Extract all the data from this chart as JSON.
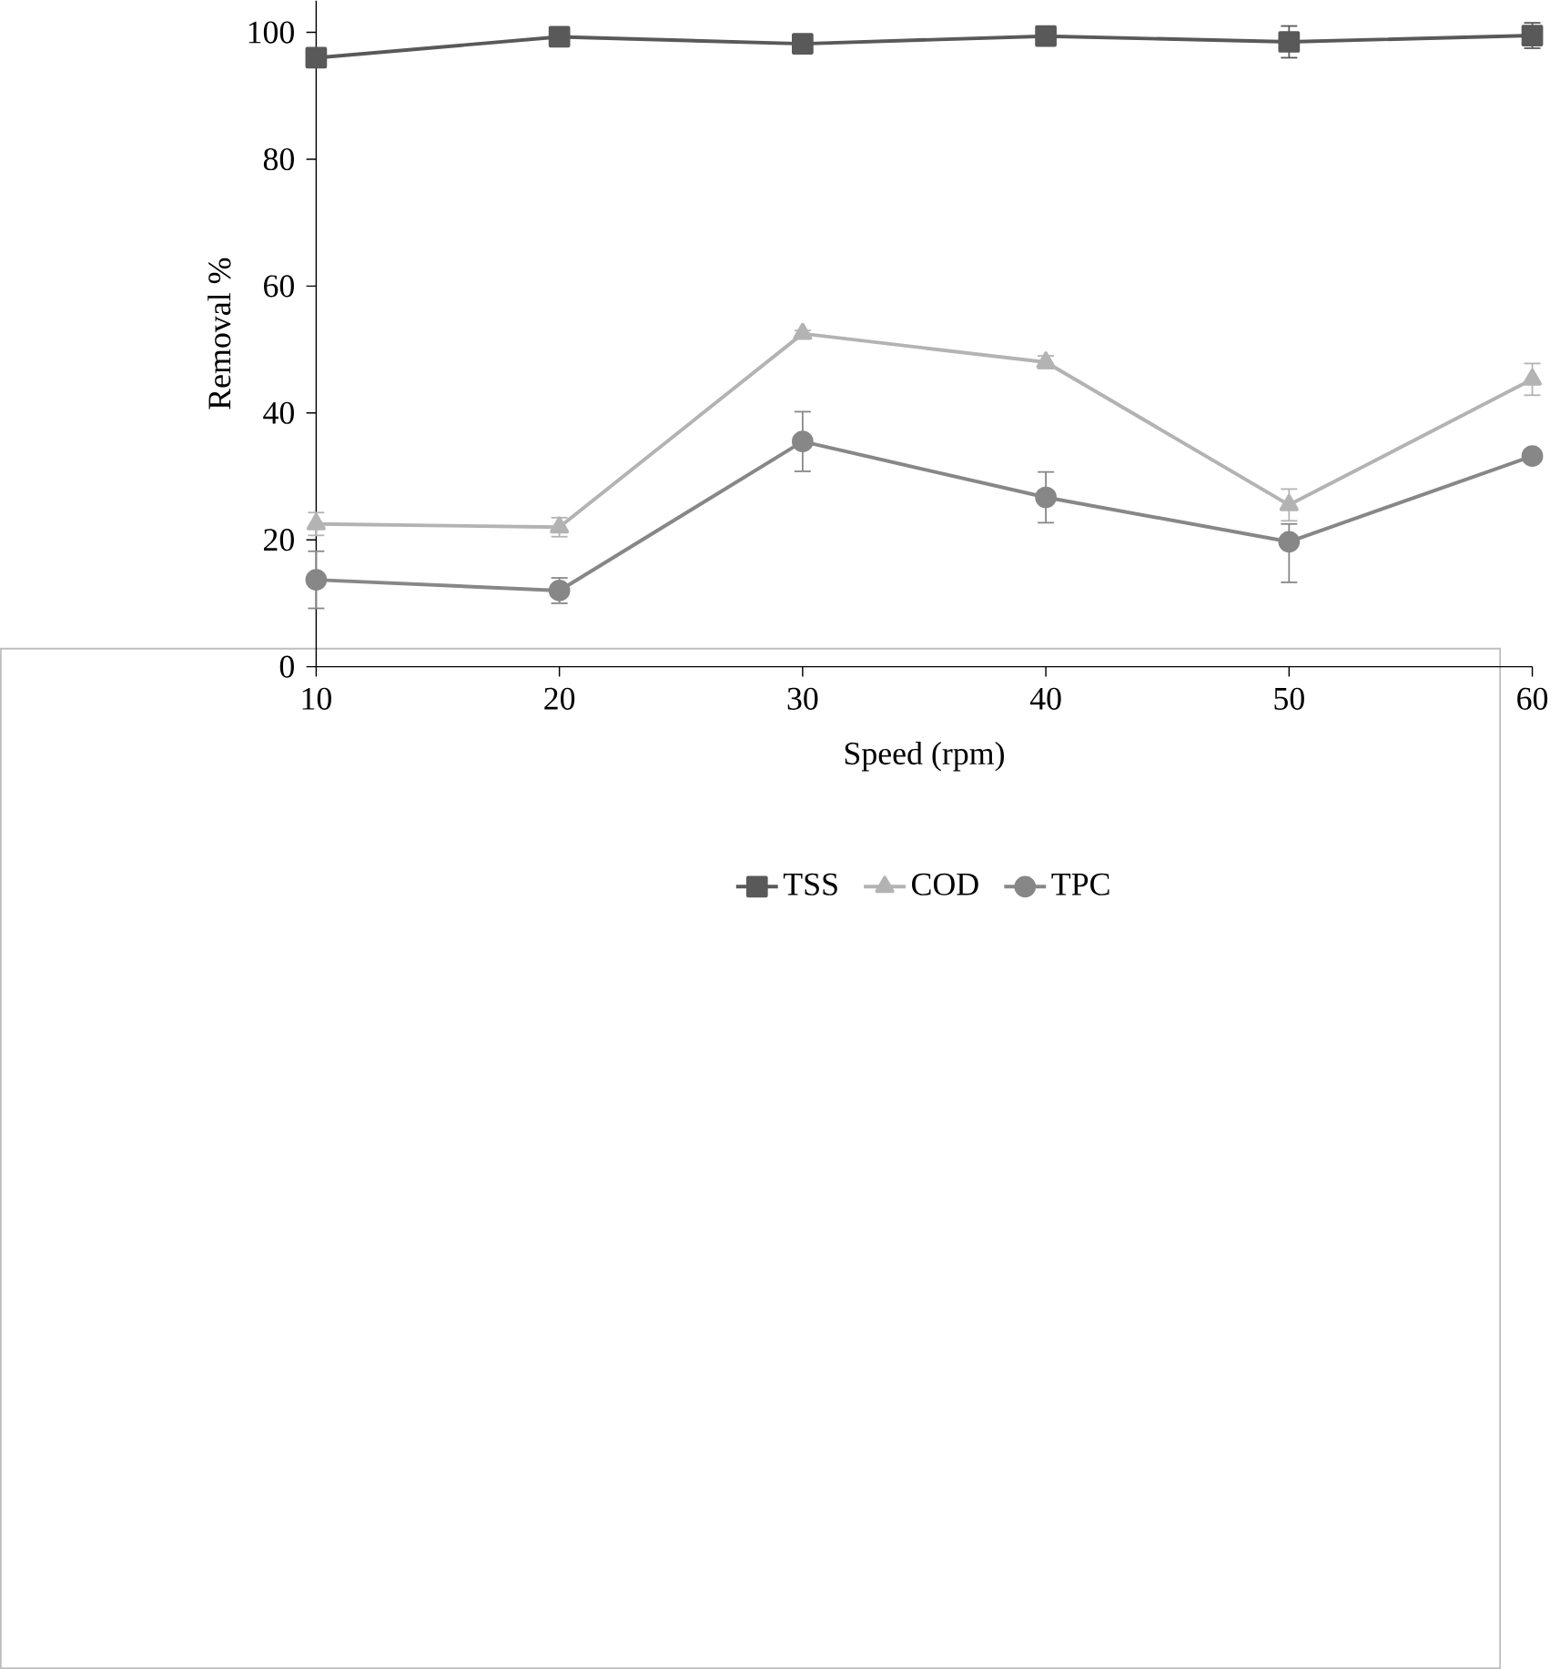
{
  "chart_data": {
    "type": "line",
    "xlabel": "Speed (rpm)",
    "ylabel": "Removal %",
    "x": [
      10,
      20,
      30,
      40,
      50,
      60
    ],
    "series": [
      {
        "name": "TSS",
        "color": "#595959",
        "marker": "square",
        "values": [
          96,
          99.3,
          98.2,
          99.4,
          98.5,
          99.5
        ],
        "errors": [
          0.8,
          0.5,
          0.5,
          0.4,
          2.5,
          2
        ]
      },
      {
        "name": "COD",
        "color": "#b3b3b3",
        "marker": "triangle",
        "values": [
          22.5,
          22,
          52.5,
          48,
          25.5,
          45.3
        ],
        "errors": [
          1.8,
          1.5,
          0.5,
          1,
          2.5,
          2.5
        ]
      },
      {
        "name": "TPC",
        "color": "#878787",
        "marker": "circle",
        "values": [
          13.7,
          12,
          35.5,
          26.7,
          19.7,
          33.2
        ],
        "errors": [
          4.5,
          2,
          4.7,
          4,
          [
            13.3,
            22.5
          ],
          null
        ]
      }
    ],
    "xlim": [
      10,
      60
    ],
    "xticks": [
      10,
      20,
      30,
      40,
      50,
      60
    ],
    "ylim": [
      0,
      105
    ],
    "yticks": [
      0,
      20,
      40,
      60,
      80,
      100
    ],
    "grid": false,
    "legend": "bottom",
    "line_style": "solid"
  }
}
